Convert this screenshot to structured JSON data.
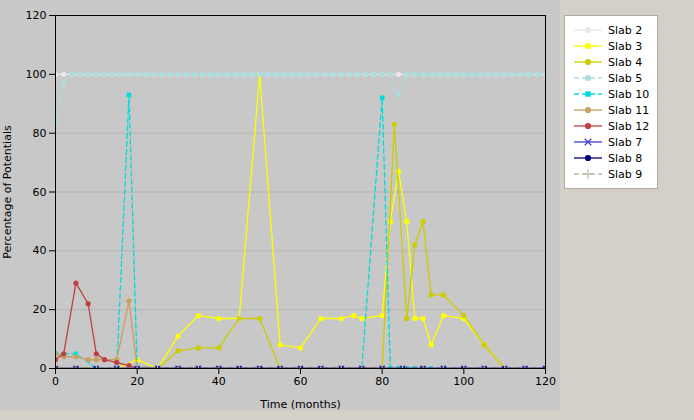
{
  "chart_data": {
    "type": "line",
    "xlabel": "Time (months)",
    "ylabel": "Percentage of Potentials",
    "xlim": [
      0,
      120
    ],
    "ylim": [
      0,
      120
    ],
    "xticks": [
      0,
      20,
      40,
      60,
      80,
      100,
      120
    ],
    "yticks": [
      0,
      20,
      40,
      60,
      80,
      100,
      120
    ],
    "grid": "y",
    "legend": "right",
    "series": [
      {
        "name": "Slab 2",
        "color": "#e8e8e8",
        "marker": "circle",
        "line_style": "solid",
        "x": [
          0,
          2,
          4,
          6,
          8,
          10,
          12,
          14,
          16,
          18,
          20,
          22,
          24,
          26,
          28,
          30,
          32,
          34,
          36,
          38,
          40,
          42,
          44,
          46,
          48,
          50,
          52,
          54,
          56,
          58,
          60,
          62,
          64,
          66,
          68,
          70,
          72,
          74,
          76,
          78,
          80,
          82,
          84,
          86,
          88,
          90,
          92,
          94,
          96,
          98,
          100,
          102,
          104,
          106,
          108,
          110,
          112,
          114,
          116,
          118,
          120
        ],
        "values": [
          100,
          100,
          100,
          100,
          100,
          100,
          100,
          100,
          100,
          100,
          100,
          100,
          100,
          100,
          100,
          100,
          100,
          100,
          100,
          100,
          100,
          100,
          100,
          100,
          100,
          100,
          100,
          100,
          100,
          100,
          100,
          100,
          100,
          100,
          100,
          100,
          100,
          100,
          100,
          100,
          100,
          100,
          100,
          100,
          100,
          100,
          100,
          100,
          100,
          100,
          100,
          100,
          100,
          100,
          100,
          100,
          100,
          100,
          100,
          100,
          100
        ]
      },
      {
        "name": "Slab 3",
        "color": "#ffff00",
        "marker": "circle",
        "line_style": "solid",
        "x": [
          0,
          5,
          10,
          15,
          20,
          25,
          30,
          35,
          40,
          45,
          50,
          55,
          60,
          65,
          70,
          73,
          75,
          80,
          82,
          84,
          86,
          88,
          90,
          92,
          95,
          100,
          105,
          110
        ],
        "values": [
          0,
          0,
          0,
          0,
          3,
          0,
          11,
          18,
          17,
          17,
          100,
          8,
          7,
          17,
          17,
          18,
          17,
          18,
          50,
          67,
          50,
          17,
          17,
          8,
          18,
          17,
          8,
          0
        ]
      },
      {
        "name": "Slab 4",
        "color": "#cccc00",
        "marker": "circle",
        "line_style": "solid",
        "x": [
          0,
          5,
          10,
          15,
          20,
          25,
          30,
          35,
          40,
          45,
          50,
          55,
          60,
          65,
          70,
          75,
          80,
          83,
          86,
          88,
          90,
          92,
          95,
          100,
          105,
          110
        ],
        "values": [
          0,
          0,
          0,
          0,
          0,
          0,
          6,
          7,
          7,
          17,
          17,
          0,
          0,
          0,
          0,
          0,
          0,
          83,
          17,
          42,
          50,
          25,
          25,
          18,
          8,
          0
        ]
      },
      {
        "name": "Slab 5",
        "color": "#aadddd",
        "marker": "square",
        "line_style": "dashed",
        "x": [
          0,
          2,
          4,
          6,
          8,
          10,
          12,
          14,
          16,
          18,
          20,
          22,
          24,
          26,
          28,
          30,
          32,
          34,
          36,
          38,
          40,
          42,
          44,
          46,
          48,
          50,
          52,
          54,
          56,
          58,
          60,
          62,
          64,
          66,
          68,
          70,
          72,
          74,
          76,
          78,
          80,
          82,
          84,
          86,
          88,
          90,
          92,
          94,
          96,
          98,
          100,
          102,
          104,
          106,
          108,
          110,
          112,
          114,
          116,
          118,
          120
        ],
        "values": [
          84,
          97,
          100,
          100,
          100,
          100,
          100,
          100,
          100,
          100,
          100,
          100,
          100,
          100,
          100,
          100,
          100,
          100,
          100,
          100,
          100,
          100,
          100,
          100,
          100,
          100,
          100,
          100,
          100,
          100,
          100,
          100,
          100,
          100,
          100,
          100,
          100,
          100,
          100,
          100,
          100,
          100,
          93,
          100,
          100,
          100,
          100,
          100,
          100,
          100,
          100,
          100,
          100,
          100,
          100,
          100,
          100,
          100,
          100,
          100,
          100
        ]
      },
      {
        "name": "Slab 10",
        "color": "#00dddd",
        "marker": "square",
        "line_style": "dashed",
        "x": [
          0,
          5,
          10,
          15,
          18,
          20,
          22,
          25,
          30,
          35,
          40,
          45,
          50,
          55,
          60,
          65,
          70,
          75,
          80,
          82,
          84,
          85,
          86,
          88,
          90,
          92,
          95,
          100,
          105,
          110,
          115,
          120
        ],
        "values": [
          5,
          5,
          0,
          0,
          93,
          0,
          0,
          0,
          0,
          0,
          0,
          0,
          0,
          0,
          0,
          0,
          0,
          0,
          92,
          0,
          0,
          0,
          0,
          0,
          0,
          0,
          0,
          0,
          0,
          0,
          0,
          0
        ]
      },
      {
        "name": "Slab 11",
        "color": "#c8a060",
        "marker": "circle",
        "line_style": "solid",
        "x": [
          0,
          2,
          5,
          8,
          10,
          12,
          15,
          18,
          20,
          22,
          25,
          30,
          35,
          40,
          45,
          50,
          55,
          60,
          65,
          70,
          75,
          80,
          90,
          100,
          110,
          120
        ],
        "values": [
          5,
          4,
          4,
          3,
          3,
          3,
          3,
          23,
          0,
          0,
          0,
          0,
          0,
          0,
          0,
          0,
          0,
          0,
          0,
          0,
          0,
          0,
          0,
          0,
          0,
          0
        ]
      },
      {
        "name": "Slab 12",
        "color": "#c04040",
        "marker": "circle",
        "line_style": "solid",
        "x": [
          0,
          2,
          5,
          8,
          10,
          12,
          15,
          18,
          20,
          25,
          30,
          35,
          40,
          45,
          50,
          55,
          60,
          65,
          70,
          75,
          80,
          90,
          100,
          110,
          120
        ],
        "values": [
          3,
          5,
          29,
          22,
          5,
          3,
          2,
          1,
          0,
          0,
          0,
          0,
          0,
          0,
          0,
          0,
          0,
          0,
          0,
          0,
          0,
          0,
          0,
          0,
          0
        ]
      },
      {
        "name": "Slab 7",
        "color": "#4040cc",
        "marker": "x",
        "line_style": "solid",
        "x": [
          0,
          5,
          10,
          15,
          20,
          25,
          30,
          35,
          40,
          45,
          50,
          55,
          60,
          65,
          70,
          75,
          80,
          85,
          90,
          95,
          100,
          105,
          110,
          115,
          120
        ],
        "values": [
          0,
          0,
          0,
          0,
          0,
          0,
          0,
          0,
          0,
          0,
          0,
          0,
          0,
          0,
          0,
          0,
          0,
          0,
          0,
          0,
          0,
          0,
          0,
          0,
          0
        ]
      },
      {
        "name": "Slab 8",
        "color": "#000080",
        "marker": "circle",
        "line_style": "solid",
        "x": [
          0,
          5,
          10,
          15,
          20,
          25,
          30,
          35,
          40,
          45,
          50,
          55,
          60,
          65,
          70,
          75,
          80,
          85,
          90,
          95,
          100,
          105,
          110,
          115,
          120
        ],
        "values": [
          0,
          0,
          0,
          0,
          0,
          0,
          0,
          0,
          0,
          0,
          0,
          0,
          0,
          0,
          0,
          0,
          0,
          0,
          0,
          0,
          0,
          0,
          0,
          0,
          0
        ]
      },
      {
        "name": "Slab 9",
        "color": "#b8b8a0",
        "marker": "plus",
        "line_style": "dashed",
        "x": [
          0,
          5,
          10,
          15,
          20,
          25,
          30,
          35,
          40,
          45,
          50,
          55,
          60,
          65,
          70,
          75,
          80,
          85,
          90,
          95,
          100,
          105,
          110,
          115,
          120
        ],
        "values": [
          0,
          0,
          0,
          0,
          0,
          0,
          0,
          0,
          0,
          0,
          0,
          0,
          0,
          0,
          0,
          0,
          0,
          0,
          0,
          0,
          0,
          0,
          0,
          0,
          0
        ]
      }
    ]
  }
}
